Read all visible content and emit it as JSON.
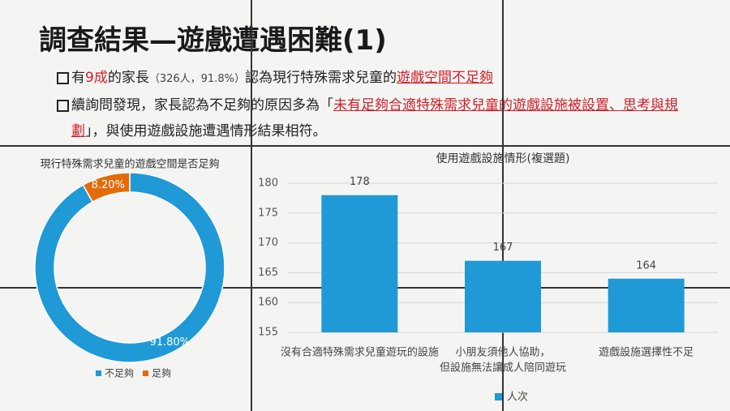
{
  "slide": {
    "title": "調查結果—遊戲遭遇困難(1)",
    "bullets": [
      {
        "segments": [
          {
            "text": "有",
            "color": "#222222",
            "underline": false
          },
          {
            "text": "9成",
            "color": "#d0202a",
            "underline": false
          },
          {
            "text": "的家長",
            "color": "#222222",
            "underline": false
          },
          {
            "text": "（326人，91.8%）",
            "color": "#444444",
            "underline": false
          },
          {
            "text": "認為現行特殊需求兒童的",
            "color": "#222222",
            "underline": false
          },
          {
            "text": "遊戲空間不足夠",
            "color": "#d0202a",
            "underline": true
          }
        ]
      },
      {
        "segments": [
          {
            "text": "續詢問發現，家長認為不足夠的原因多為「",
            "color": "#222222",
            "underline": false
          },
          {
            "text": "未有足夠合適特殊需求兒童的遊戲設施被設置、思考與規劃",
            "color": "#d0202a",
            "underline": true
          },
          {
            "text": "」，與使用遊戲設施遭遇情形結果相符。",
            "color": "#222222",
            "underline": false
          }
        ]
      }
    ]
  },
  "chart_data": [
    {
      "type": "donut",
      "title": "現行特殊需求兒童的遊戲空間是否足夠",
      "categories": [
        "不足夠",
        "足夠"
      ],
      "values": [
        91.8,
        8.2
      ],
      "value_labels": [
        "91.80%",
        "8.20%"
      ],
      "colors": [
        "#1f9ad6",
        "#e36c0a"
      ]
    },
    {
      "type": "bar",
      "title": "使用遊戲設施情形(複選題)",
      "categories": [
        [
          "沒有合適特殊需求兒童遊玩的設施"
        ],
        [
          "小朋友須他人協助，",
          "但設施無法讓成人陪同遊玩"
        ],
        [
          "遊戲設施選擇性不足"
        ]
      ],
      "series": [
        {
          "name": "人次",
          "color": "#1f9ad6",
          "values": [
            178,
            167,
            164
          ]
        }
      ],
      "ylim": [
        155,
        180
      ],
      "yticks": [
        155,
        160,
        165,
        170,
        175,
        180
      ],
      "grid": true
    }
  ]
}
